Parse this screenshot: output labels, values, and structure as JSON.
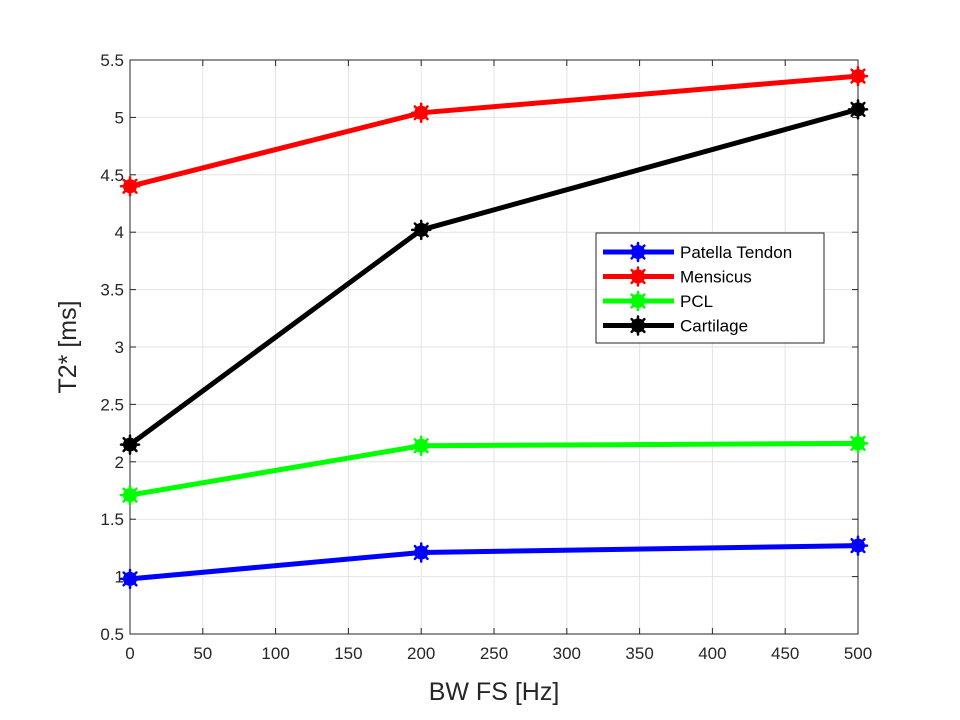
{
  "chart_data": {
    "type": "line",
    "xlabel": "BW FS [Hz]",
    "ylabel": "T2* [ms]",
    "xlim": [
      0,
      500
    ],
    "ylim": [
      0.5,
      5.5
    ],
    "xticks": [
      "0",
      "50",
      "100",
      "150",
      "200",
      "250",
      "300",
      "350",
      "400",
      "450",
      "500"
    ],
    "yticks": [
      "0.5",
      "1",
      "1.5",
      "2",
      "2.5",
      "3",
      "3.5",
      "4",
      "4.5",
      "5",
      "5.5"
    ],
    "grid": true,
    "legend_position": "right",
    "x": [
      0,
      200,
      500
    ],
    "series": [
      {
        "name": "Patella Tendon",
        "color": "#0000ff",
        "values": [
          0.98,
          1.21,
          1.27
        ]
      },
      {
        "name": "Mensicus",
        "color": "#ff0000",
        "values": [
          4.4,
          5.04,
          5.36
        ]
      },
      {
        "name": "PCL",
        "color": "#00ff00",
        "values": [
          1.71,
          2.14,
          2.16
        ]
      },
      {
        "name": "Cartilage",
        "color": "#000000",
        "values": [
          2.15,
          4.02,
          5.07
        ]
      }
    ]
  }
}
